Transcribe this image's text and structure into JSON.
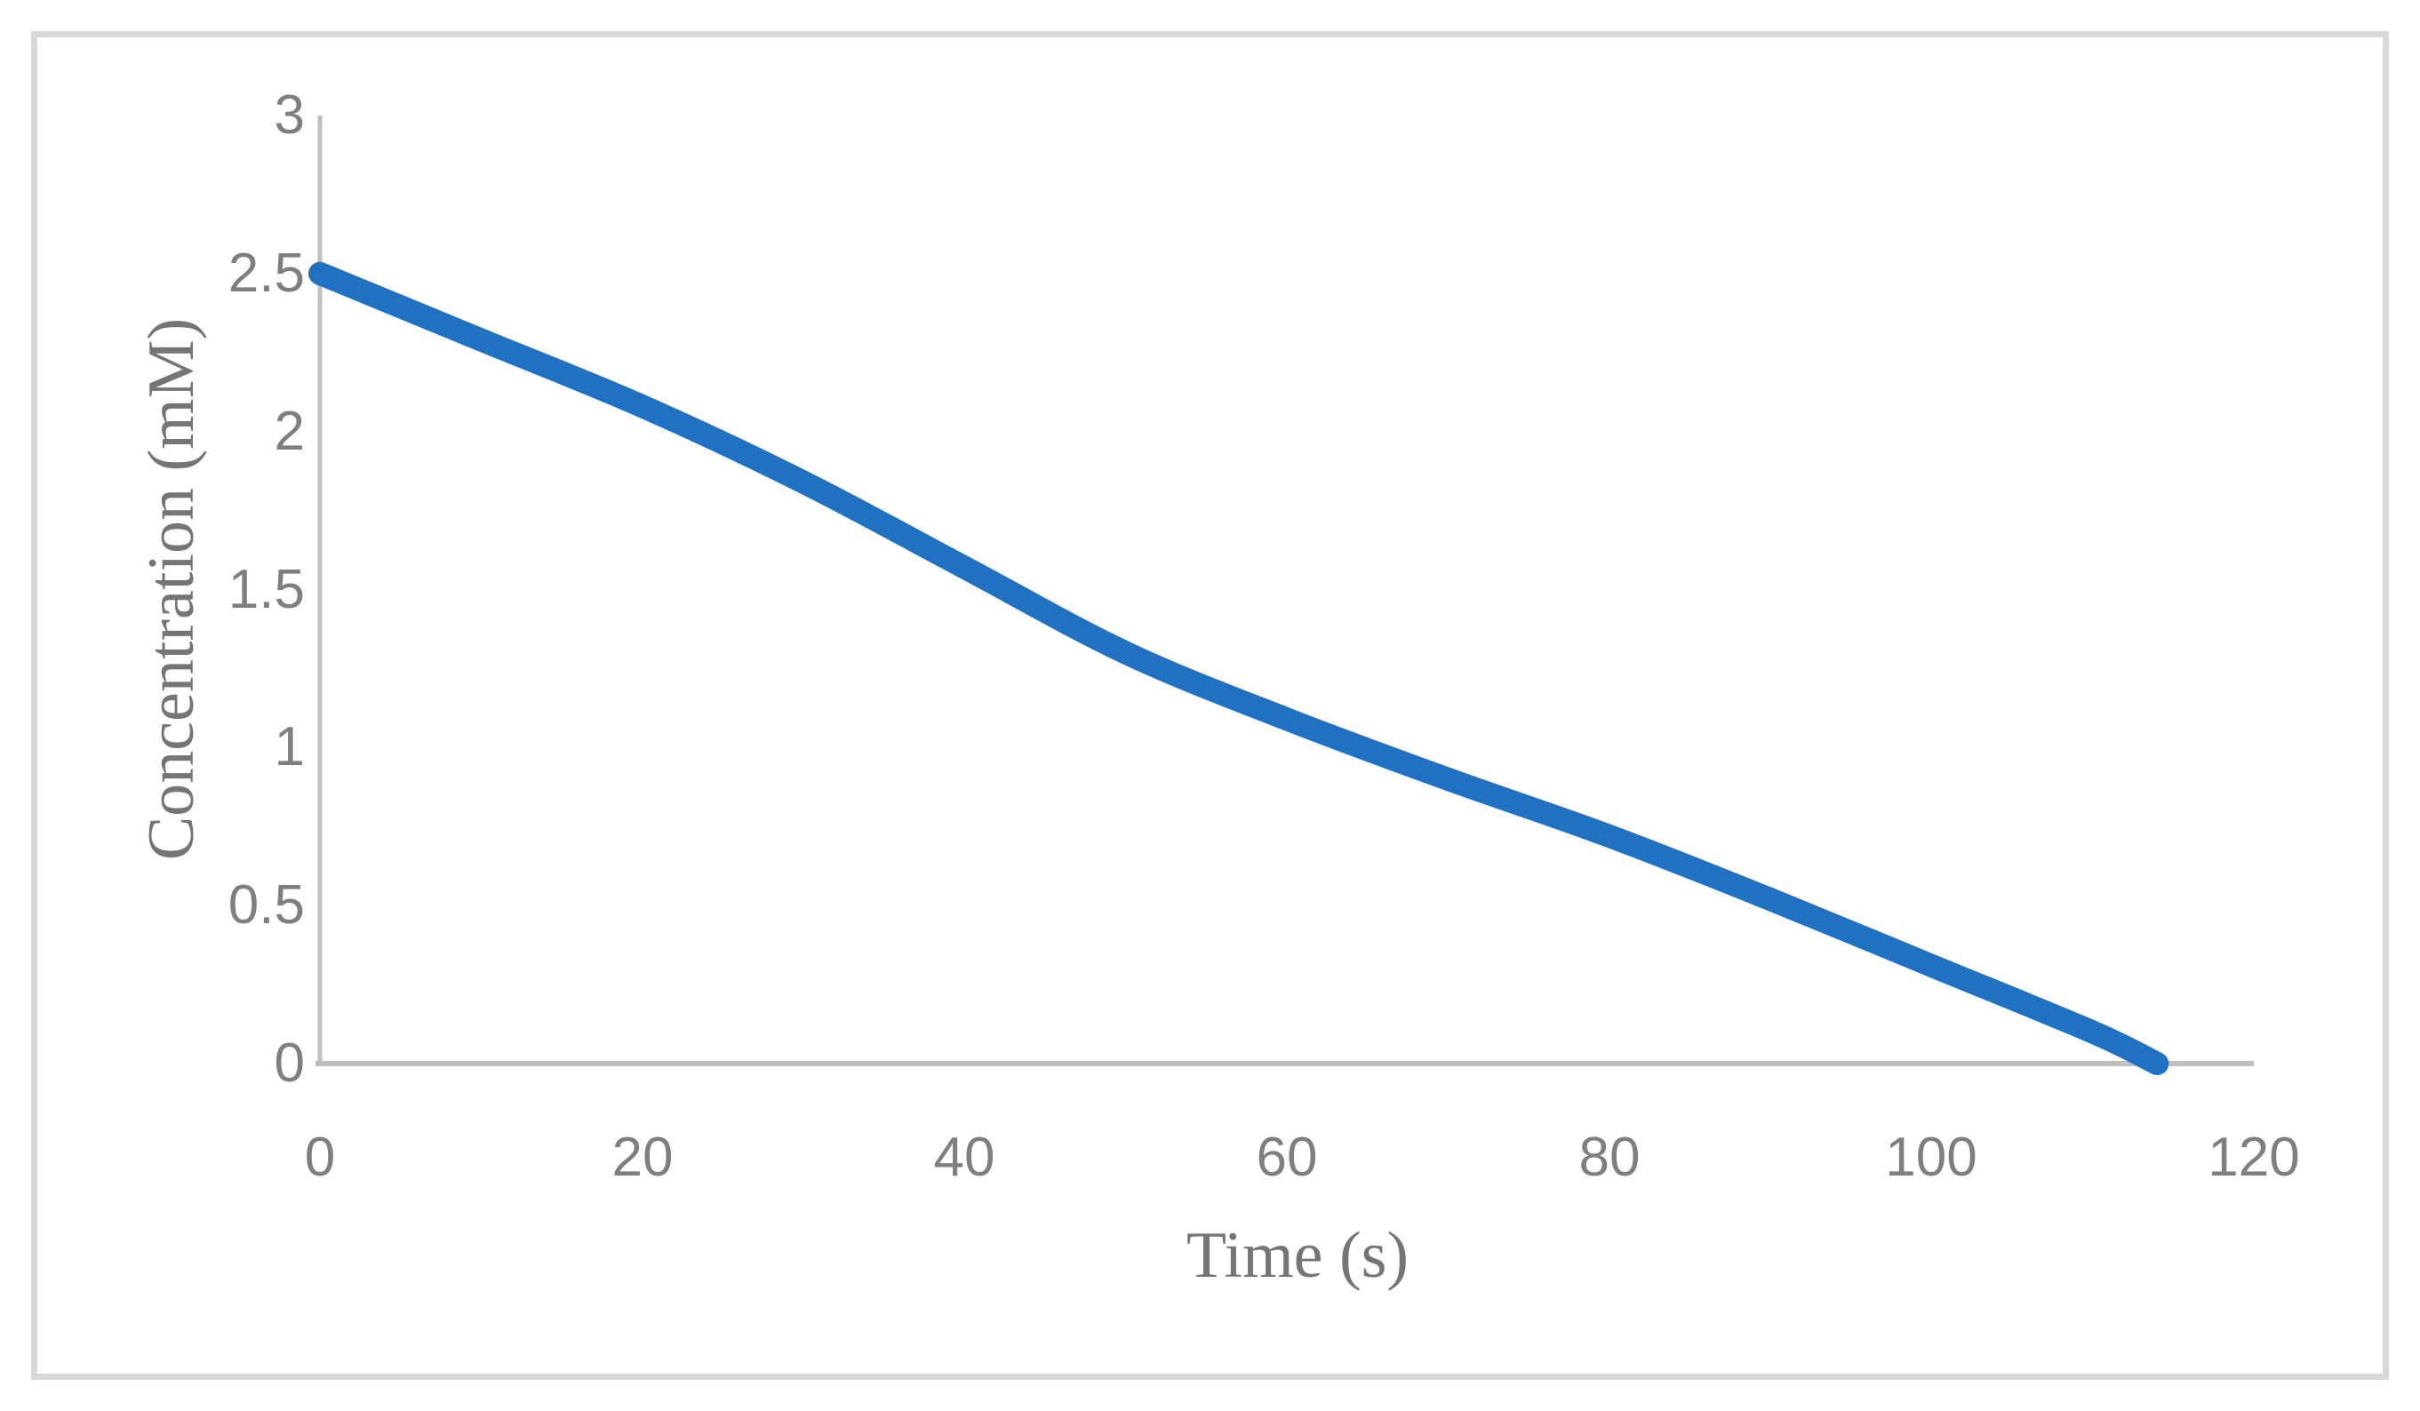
{
  "figure": {
    "background": "#FFFFFF",
    "border_color": "#D8D8D8"
  },
  "chart_data": {
    "type": "line",
    "title": "",
    "xlabel": "Time (s)",
    "ylabel": "Concentration (mM)",
    "series": [
      {
        "name": "concentration",
        "color": "#2071C1",
        "x": [
          0,
          10,
          20,
          30,
          40,
          50,
          60,
          70,
          80,
          90,
          100,
          110,
          114
        ],
        "y": [
          2.5,
          2.29,
          2.08,
          1.84,
          1.57,
          1.3,
          1.09,
          0.9,
          0.72,
          0.52,
          0.31,
          0.1,
          0.0
        ]
      }
    ],
    "xlim": [
      0,
      120
    ],
    "ylim": [
      0,
      3
    ],
    "x_ticks": [
      "0",
      "20",
      "40",
      "60",
      "80",
      "100",
      "120"
    ],
    "y_ticks": [
      "0",
      "0.5",
      "1",
      "1.5",
      "2",
      "2.5",
      "3"
    ],
    "grid": false,
    "legend": "none",
    "axis_color": "#BFBFBF",
    "tick_label_color": "#7F7F7F",
    "axis_title_color": "#757575",
    "line_width": 26
  }
}
